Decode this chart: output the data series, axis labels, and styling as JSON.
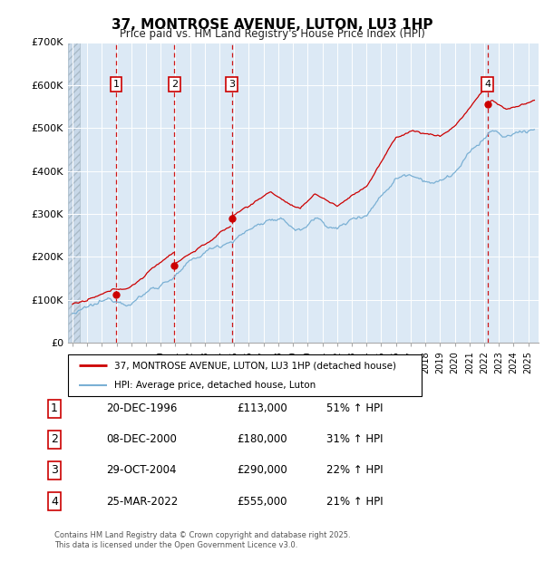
{
  "title": "37, MONTROSE AVENUE, LUTON, LU3 1HP",
  "subtitle": "Price paid vs. HM Land Registry's House Price Index (HPI)",
  "legend_line1": "37, MONTROSE AVENUE, LUTON, LU3 1HP (detached house)",
  "legend_line2": "HPI: Average price, detached house, Luton",
  "sale_color": "#cc0000",
  "hpi_color": "#7ab0d4",
  "background_color": "#dce9f5",
  "ylim": [
    0,
    700000
  ],
  "yticks": [
    0,
    100000,
    200000,
    300000,
    400000,
    500000,
    600000,
    700000
  ],
  "ytick_labels": [
    "£0",
    "£100K",
    "£200K",
    "£300K",
    "£400K",
    "£500K",
    "£600K",
    "£700K"
  ],
  "xlim_start": 1993.7,
  "xlim_end": 2025.7,
  "sale_dates": [
    1996.96,
    2000.93,
    2004.83,
    2022.23
  ],
  "sale_prices": [
    113000,
    180000,
    290000,
    555000
  ],
  "sale_labels": [
    "1",
    "2",
    "3",
    "4"
  ],
  "footer1": "Contains HM Land Registry data © Crown copyright and database right 2025.",
  "footer2": "This data is licensed under the Open Government Licence v3.0.",
  "table_data": [
    {
      "label": "1",
      "date": "20-DEC-1996",
      "price": "£113,000",
      "hpi": "51% ↑ HPI"
    },
    {
      "label": "2",
      "date": "08-DEC-2000",
      "price": "£180,000",
      "hpi": "31% ↑ HPI"
    },
    {
      "label": "3",
      "date": "29-OCT-2004",
      "price": "£290,000",
      "hpi": "22% ↑ HPI"
    },
    {
      "label": "4",
      "date": "25-MAR-2022",
      "price": "£555,000",
      "hpi": "21% ↑ HPI"
    }
  ]
}
